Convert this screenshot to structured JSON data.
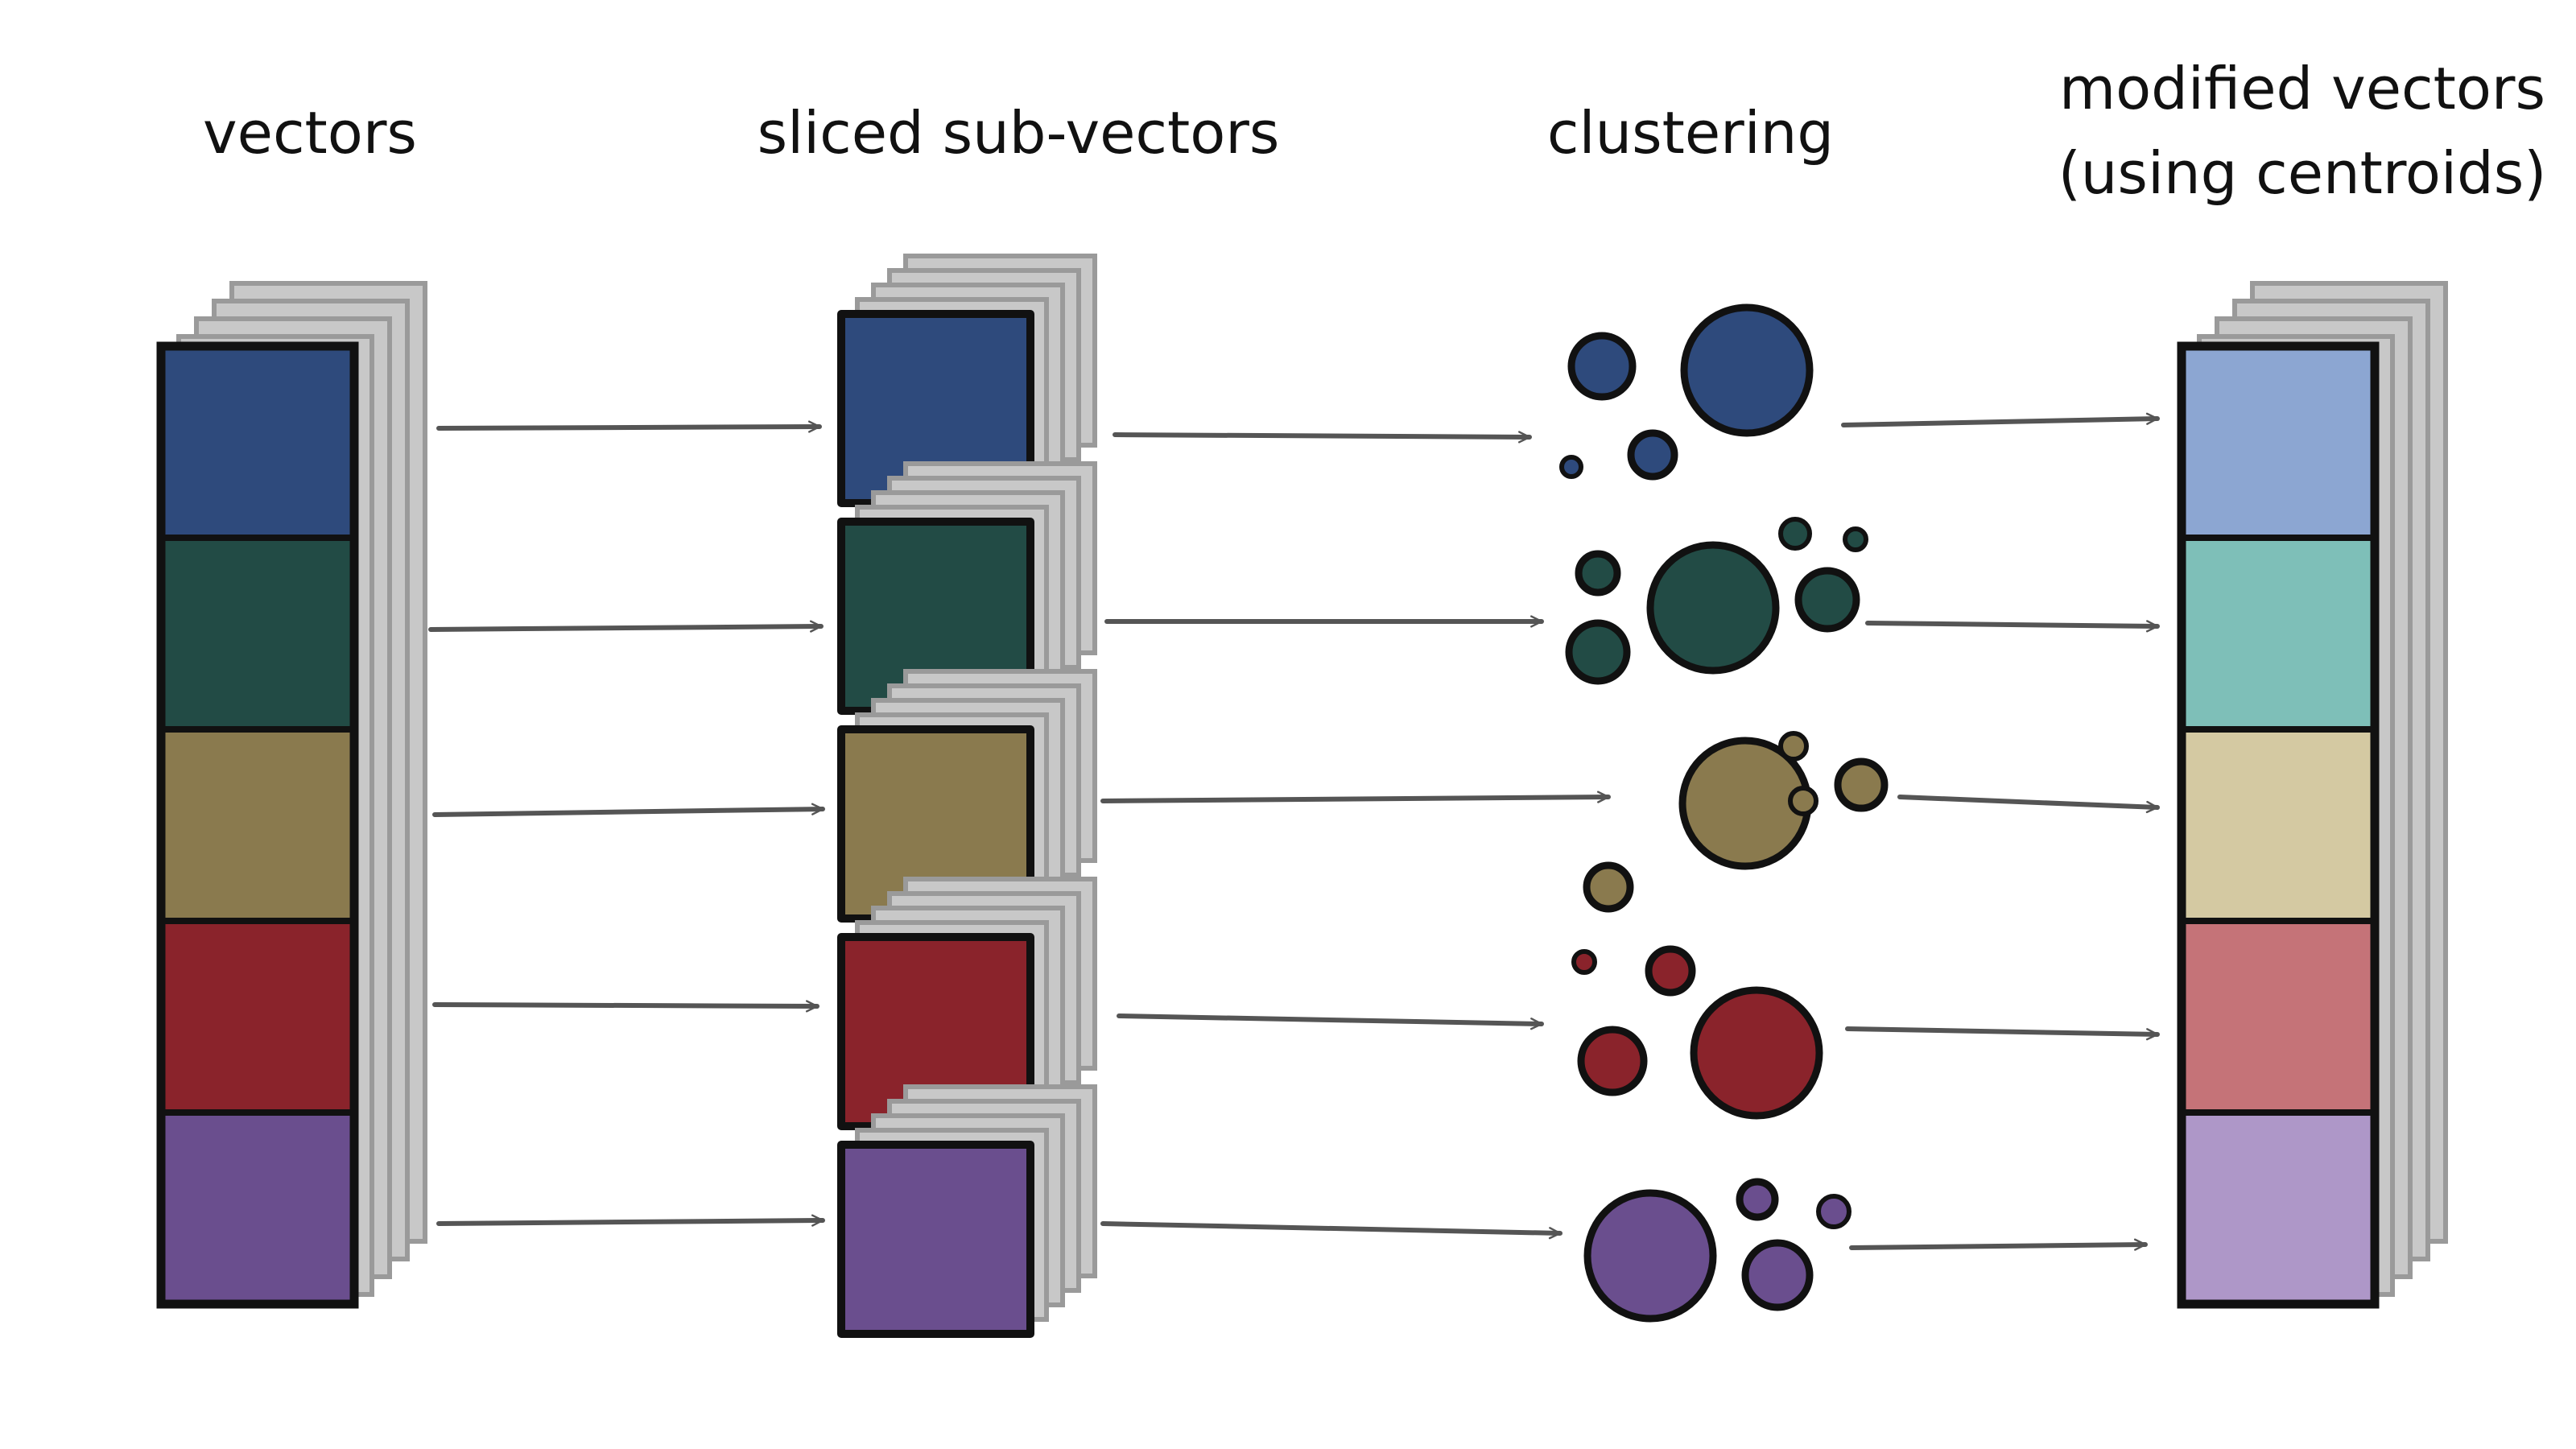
{
  "headings": {
    "vectors": "vectors",
    "sliced": "sliced sub-vectors",
    "clustering": "clustering",
    "modified_line1": "modified vectors",
    "modified_line2": "(using centroids)"
  },
  "segments": [
    {
      "key": "blue",
      "color": "#2E4A7C",
      "centroid_color": "#8CA6D2"
    },
    {
      "key": "green",
      "color": "#224B45",
      "centroid_color": "#7EBFB8"
    },
    {
      "key": "tan",
      "color": "#8A7A4E",
      "centroid_color": "#D4C9A2"
    },
    {
      "key": "red",
      "color": "#8A232B",
      "centroid_color": "#C57378"
    },
    {
      "key": "purple",
      "color": "#6A4E8E",
      "centroid_color": "#AE97C8"
    }
  ],
  "colors": {
    "outline": "#111111",
    "shadow_fill": "#C8C8C8",
    "shadow_stroke": "#9A9A9A",
    "arrow": "#555555"
  }
}
